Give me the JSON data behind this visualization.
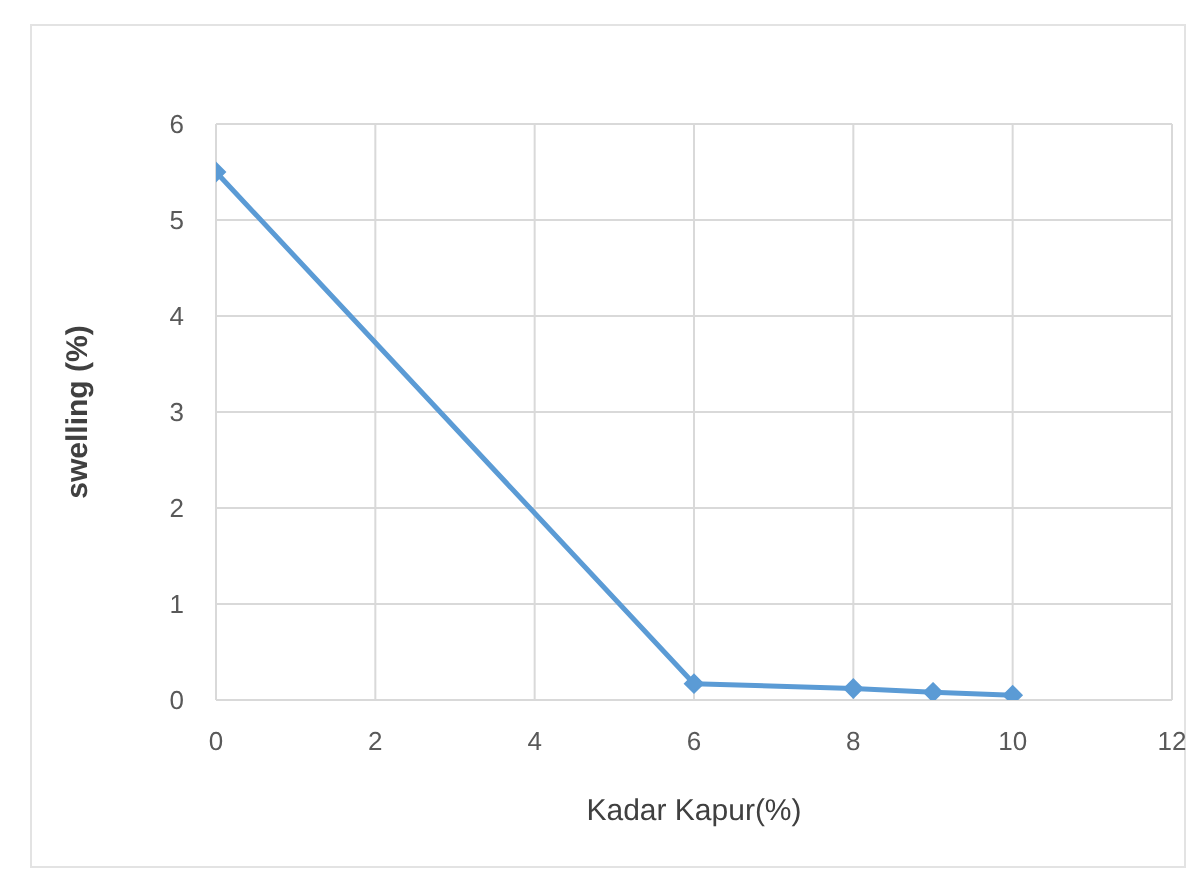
{
  "chart_data": {
    "type": "line",
    "xlabel": "Kadar Kapur(%)",
    "ylabel": "swelling (%)",
    "x": [
      0,
      6,
      8,
      9,
      10
    ],
    "series": [
      {
        "color": "#5b9bd5",
        "values": [
          5.5,
          0.17,
          0.12,
          0.08,
          0.05
        ]
      }
    ],
    "xlim": [
      0,
      12
    ],
    "xticks": [
      0,
      2,
      4,
      6,
      8,
      10,
      12
    ],
    "ylim": [
      0,
      6
    ],
    "yticks": [
      0,
      1,
      2,
      3,
      4,
      5,
      6
    ],
    "grid": true,
    "marker": "diamond"
  }
}
